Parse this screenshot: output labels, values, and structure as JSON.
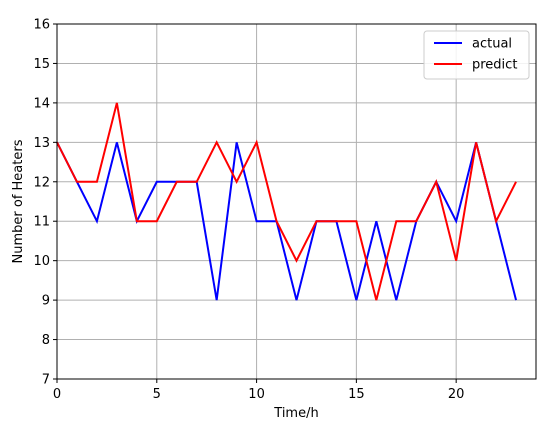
{
  "chart_data": {
    "type": "line",
    "title": "",
    "xlabel": "Time/h",
    "ylabel": "Number of Heaters",
    "xlim": [
      0,
      24
    ],
    "ylim": [
      7,
      16
    ],
    "x_ticks": [
      0,
      5,
      10,
      15,
      20
    ],
    "y_ticks": [
      7,
      8,
      9,
      10,
      11,
      12,
      13,
      14,
      15,
      16
    ],
    "grid": true,
    "legend_position": "top-right",
    "x": [
      0,
      1,
      2,
      3,
      4,
      5,
      6,
      7,
      8,
      9,
      10,
      11,
      12,
      13,
      14,
      15,
      16,
      17,
      18,
      19,
      20,
      21,
      22,
      23
    ],
    "series": [
      {
        "name": "actual",
        "color": "#0000ff",
        "values": [
          13,
          12,
          11,
          13,
          11,
          12,
          12,
          12,
          9,
          13,
          11,
          11,
          9,
          11,
          11,
          9,
          11,
          9,
          11,
          12,
          11,
          13,
          11,
          9
        ]
      },
      {
        "name": "predict",
        "color": "#ff0000",
        "values": [
          13,
          12,
          12,
          14,
          11,
          11,
          12,
          12,
          13,
          12,
          13,
          11,
          10,
          11,
          11,
          11,
          9,
          11,
          11,
          12,
          10,
          13,
          11,
          12
        ]
      }
    ]
  }
}
